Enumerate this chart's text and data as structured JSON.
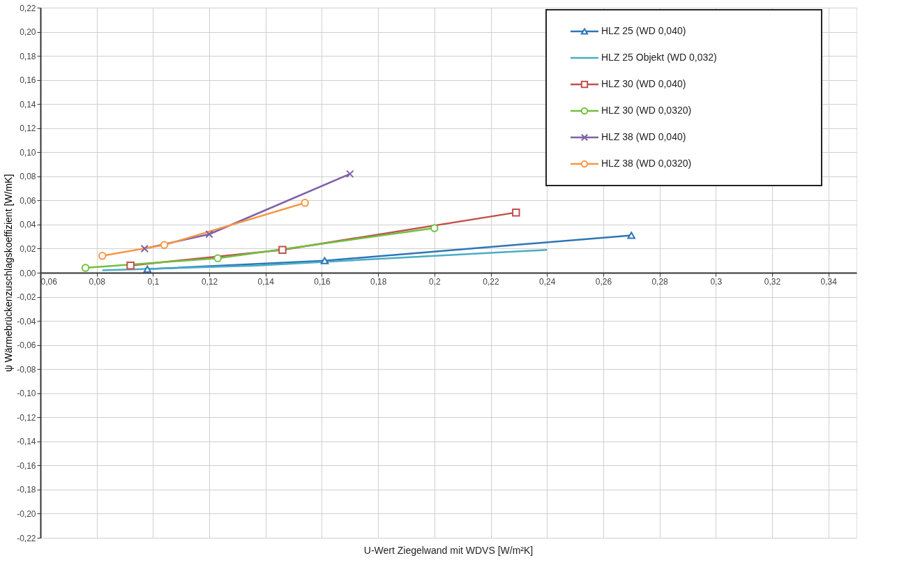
{
  "chart_data": {
    "type": "line",
    "xlabel": "U-Wert Ziegelwand mit WDVS [W/m²K]",
    "ylabel": "ψ Wärmebrückenzuschlagskoeffizient  [W/mK]",
    "xlim": [
      0.06,
      0.35
    ],
    "ylim": [
      -0.22,
      0.22
    ],
    "xticks": [
      {
        "value": 0.06,
        "label": "0,06"
      },
      {
        "value": 0.08,
        "label": "0,08"
      },
      {
        "value": 0.1,
        "label": "0,1"
      },
      {
        "value": 0.12,
        "label": "0,12"
      },
      {
        "value": 0.14,
        "label": "0,14"
      },
      {
        "value": 0.16,
        "label": "0,16"
      },
      {
        "value": 0.18,
        "label": "0,18"
      },
      {
        "value": 0.2,
        "label": "0,2"
      },
      {
        "value": 0.22,
        "label": "0,22"
      },
      {
        "value": 0.24,
        "label": "0,24"
      },
      {
        "value": 0.26,
        "label": "0,26"
      },
      {
        "value": 0.28,
        "label": "0,28"
      },
      {
        "value": 0.3,
        "label": "0,3"
      },
      {
        "value": 0.32,
        "label": "0,32"
      },
      {
        "value": 0.34,
        "label": "0,34"
      }
    ],
    "yticks": [
      {
        "value": -0.22,
        "label": "-0,22"
      },
      {
        "value": -0.2,
        "label": "-0,20"
      },
      {
        "value": -0.18,
        "label": "-0,18"
      },
      {
        "value": -0.16,
        "label": "-0,16"
      },
      {
        "value": -0.14,
        "label": "-0,14"
      },
      {
        "value": -0.12,
        "label": "-0,12"
      },
      {
        "value": -0.1,
        "label": "-0,10"
      },
      {
        "value": -0.08,
        "label": "-0,08"
      },
      {
        "value": -0.06,
        "label": "-0,06"
      },
      {
        "value": -0.04,
        "label": "-0,04"
      },
      {
        "value": -0.02,
        "label": "-0,02"
      },
      {
        "value": 0,
        "label": "0,00"
      },
      {
        "value": 0.02,
        "label": "0,02"
      },
      {
        "value": 0.04,
        "label": "0,04"
      },
      {
        "value": 0.06,
        "label": "0,06"
      },
      {
        "value": 0.08,
        "label": "0,08"
      },
      {
        "value": 0.1,
        "label": "0,10"
      },
      {
        "value": 0.12,
        "label": "0,12"
      },
      {
        "value": 0.14,
        "label": "0,14"
      },
      {
        "value": 0.16,
        "label": "0,16"
      },
      {
        "value": 0.18,
        "label": "0,18"
      },
      {
        "value": 0.2,
        "label": "0,20"
      },
      {
        "value": 0.22,
        "label": "0,22"
      }
    ],
    "grid": true,
    "legend": "top right",
    "line_style": "solid",
    "series": [
      {
        "name": "HLZ 25 (WD 0,040)",
        "color": "#2e75b6",
        "marker": "triangle",
        "x": [
          0.098,
          0.161,
          0.27
        ],
        "values": [
          0.003,
          0.01,
          0.031
        ]
      },
      {
        "name": "HLZ 25 Objekt (WD 0,032)",
        "color": "#4bacc6",
        "marker": "none",
        "x": [
          0.082,
          0.137,
          0.24
        ],
        "values": [
          0.002,
          0.006,
          0.019
        ]
      },
      {
        "name": "HLZ 30 (WD 0,040)",
        "color": "#c0504d",
        "marker": "square",
        "x": [
          0.092,
          0.146,
          0.229
        ],
        "values": [
          0.006,
          0.019,
          0.05
        ]
      },
      {
        "name": "HLZ 30 (WD 0,0320)",
        "color": "#70c040",
        "marker": "circle",
        "x": [
          0.076,
          0.123,
          0.2
        ],
        "values": [
          0.004,
          0.012,
          0.037
        ]
      },
      {
        "name": "HLZ 38 (WD 0,040)",
        "color": "#7f5fa8",
        "marker": "cross",
        "x": [
          0.097,
          0.12,
          0.17
        ],
        "values": [
          0.02,
          0.032,
          0.082
        ]
      },
      {
        "name": "HLZ 38 (WD 0,0320)",
        "color": "#f79646",
        "marker": "circle",
        "x": [
          0.082,
          0.104,
          0.154
        ],
        "values": [
          0.014,
          0.023,
          0.058
        ]
      }
    ]
  }
}
